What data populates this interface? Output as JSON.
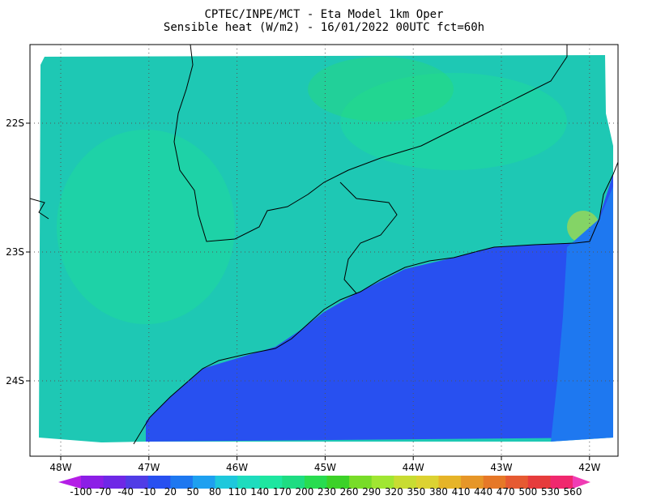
{
  "header": {
    "title_lines": [
      "CPTEC/INPE/MCT -  Eta Model 1km Oper",
      "Sensible heat (W/m2) - 16/01/2022 00UTC fct=60h"
    ]
  },
  "map": {
    "lat_labels": [
      "22S",
      "23S",
      "24S"
    ],
    "lon_labels": [
      "48W",
      "47W",
      "46W",
      "45W",
      "44W",
      "43W",
      "42W"
    ]
  },
  "colorbar": {
    "levels": [
      -100,
      -70,
      -40,
      -10,
      20,
      50,
      80,
      110,
      140,
      170,
      200,
      230,
      260,
      290,
      320,
      350,
      380,
      410,
      440,
      470,
      500,
      530,
      560
    ],
    "colors": [
      "#b41ee6",
      "#8c1ee6",
      "#6e28e6",
      "#503ce6",
      "#2850f0",
      "#1e78f0",
      "#1ea0f0",
      "#1ec8dc",
      "#1edcbe",
      "#1ee6a0",
      "#1edc82",
      "#28dc50",
      "#3cd228",
      "#78dc28",
      "#a0e632",
      "#c8dc32",
      "#dcd232",
      "#e6b428",
      "#e69628",
      "#e67828",
      "#e65a32",
      "#e63c3c",
      "#f0286e",
      "#f03cb4"
    ]
  }
}
